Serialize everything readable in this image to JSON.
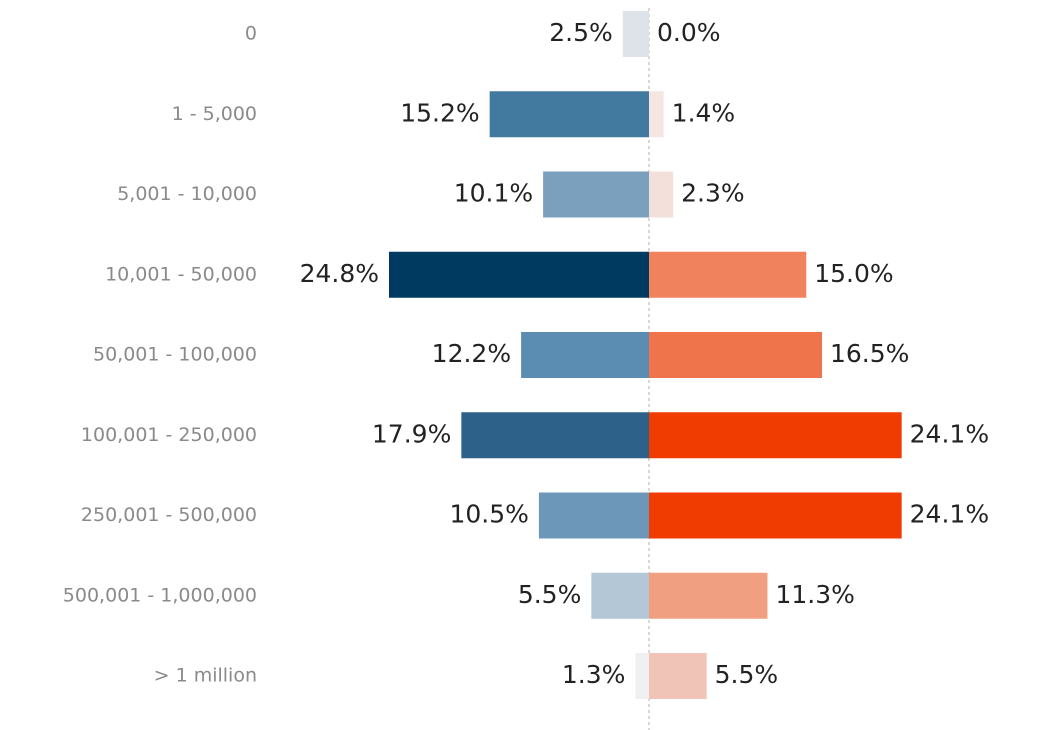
{
  "chart_data": {
    "type": "diverging-bar",
    "categories": [
      "0",
      "1 - 5,000",
      "5,001 - 10,000",
      "10,001 - 50,000",
      "50,001 - 100,000",
      "100,001 - 250,000",
      "250,001 - 500,000",
      "500,001 - 1,000,000",
      "> 1 million"
    ],
    "series": [
      {
        "side": "left",
        "values": [
          2.5,
          15.2,
          10.1,
          24.8,
          12.2,
          17.9,
          10.5,
          5.5,
          1.3
        ],
        "value_labels": [
          "2.5%",
          "15.2%",
          "10.1%",
          "24.8%",
          "12.2%",
          "17.9%",
          "10.5%",
          "5.5%",
          "1.3%"
        ],
        "colors": [
          "#dde3e8",
          "#41799f",
          "#7aa0bd",
          "#003a60",
          "#5b8db2",
          "#2d6189",
          "#6d97b8",
          "#b3c7d7",
          "#eef0f2"
        ]
      },
      {
        "side": "right",
        "values": [
          0.0,
          1.4,
          2.3,
          15.0,
          16.5,
          24.1,
          24.1,
          11.3,
          5.5
        ],
        "value_labels": [
          "0.0%",
          "1.4%",
          "2.3%",
          "15.0%",
          "16.5%",
          "24.1%",
          "24.1%",
          "11.3%",
          "5.5%"
        ],
        "colors": [
          "#f7eeeb",
          "#f6e6e1",
          "#f3e0da",
          "#f0825d",
          "#ef734b",
          "#f03c00",
          "#f03c00",
          "#f09f80",
          "#f0c5b8"
        ]
      }
    ]
  }
}
